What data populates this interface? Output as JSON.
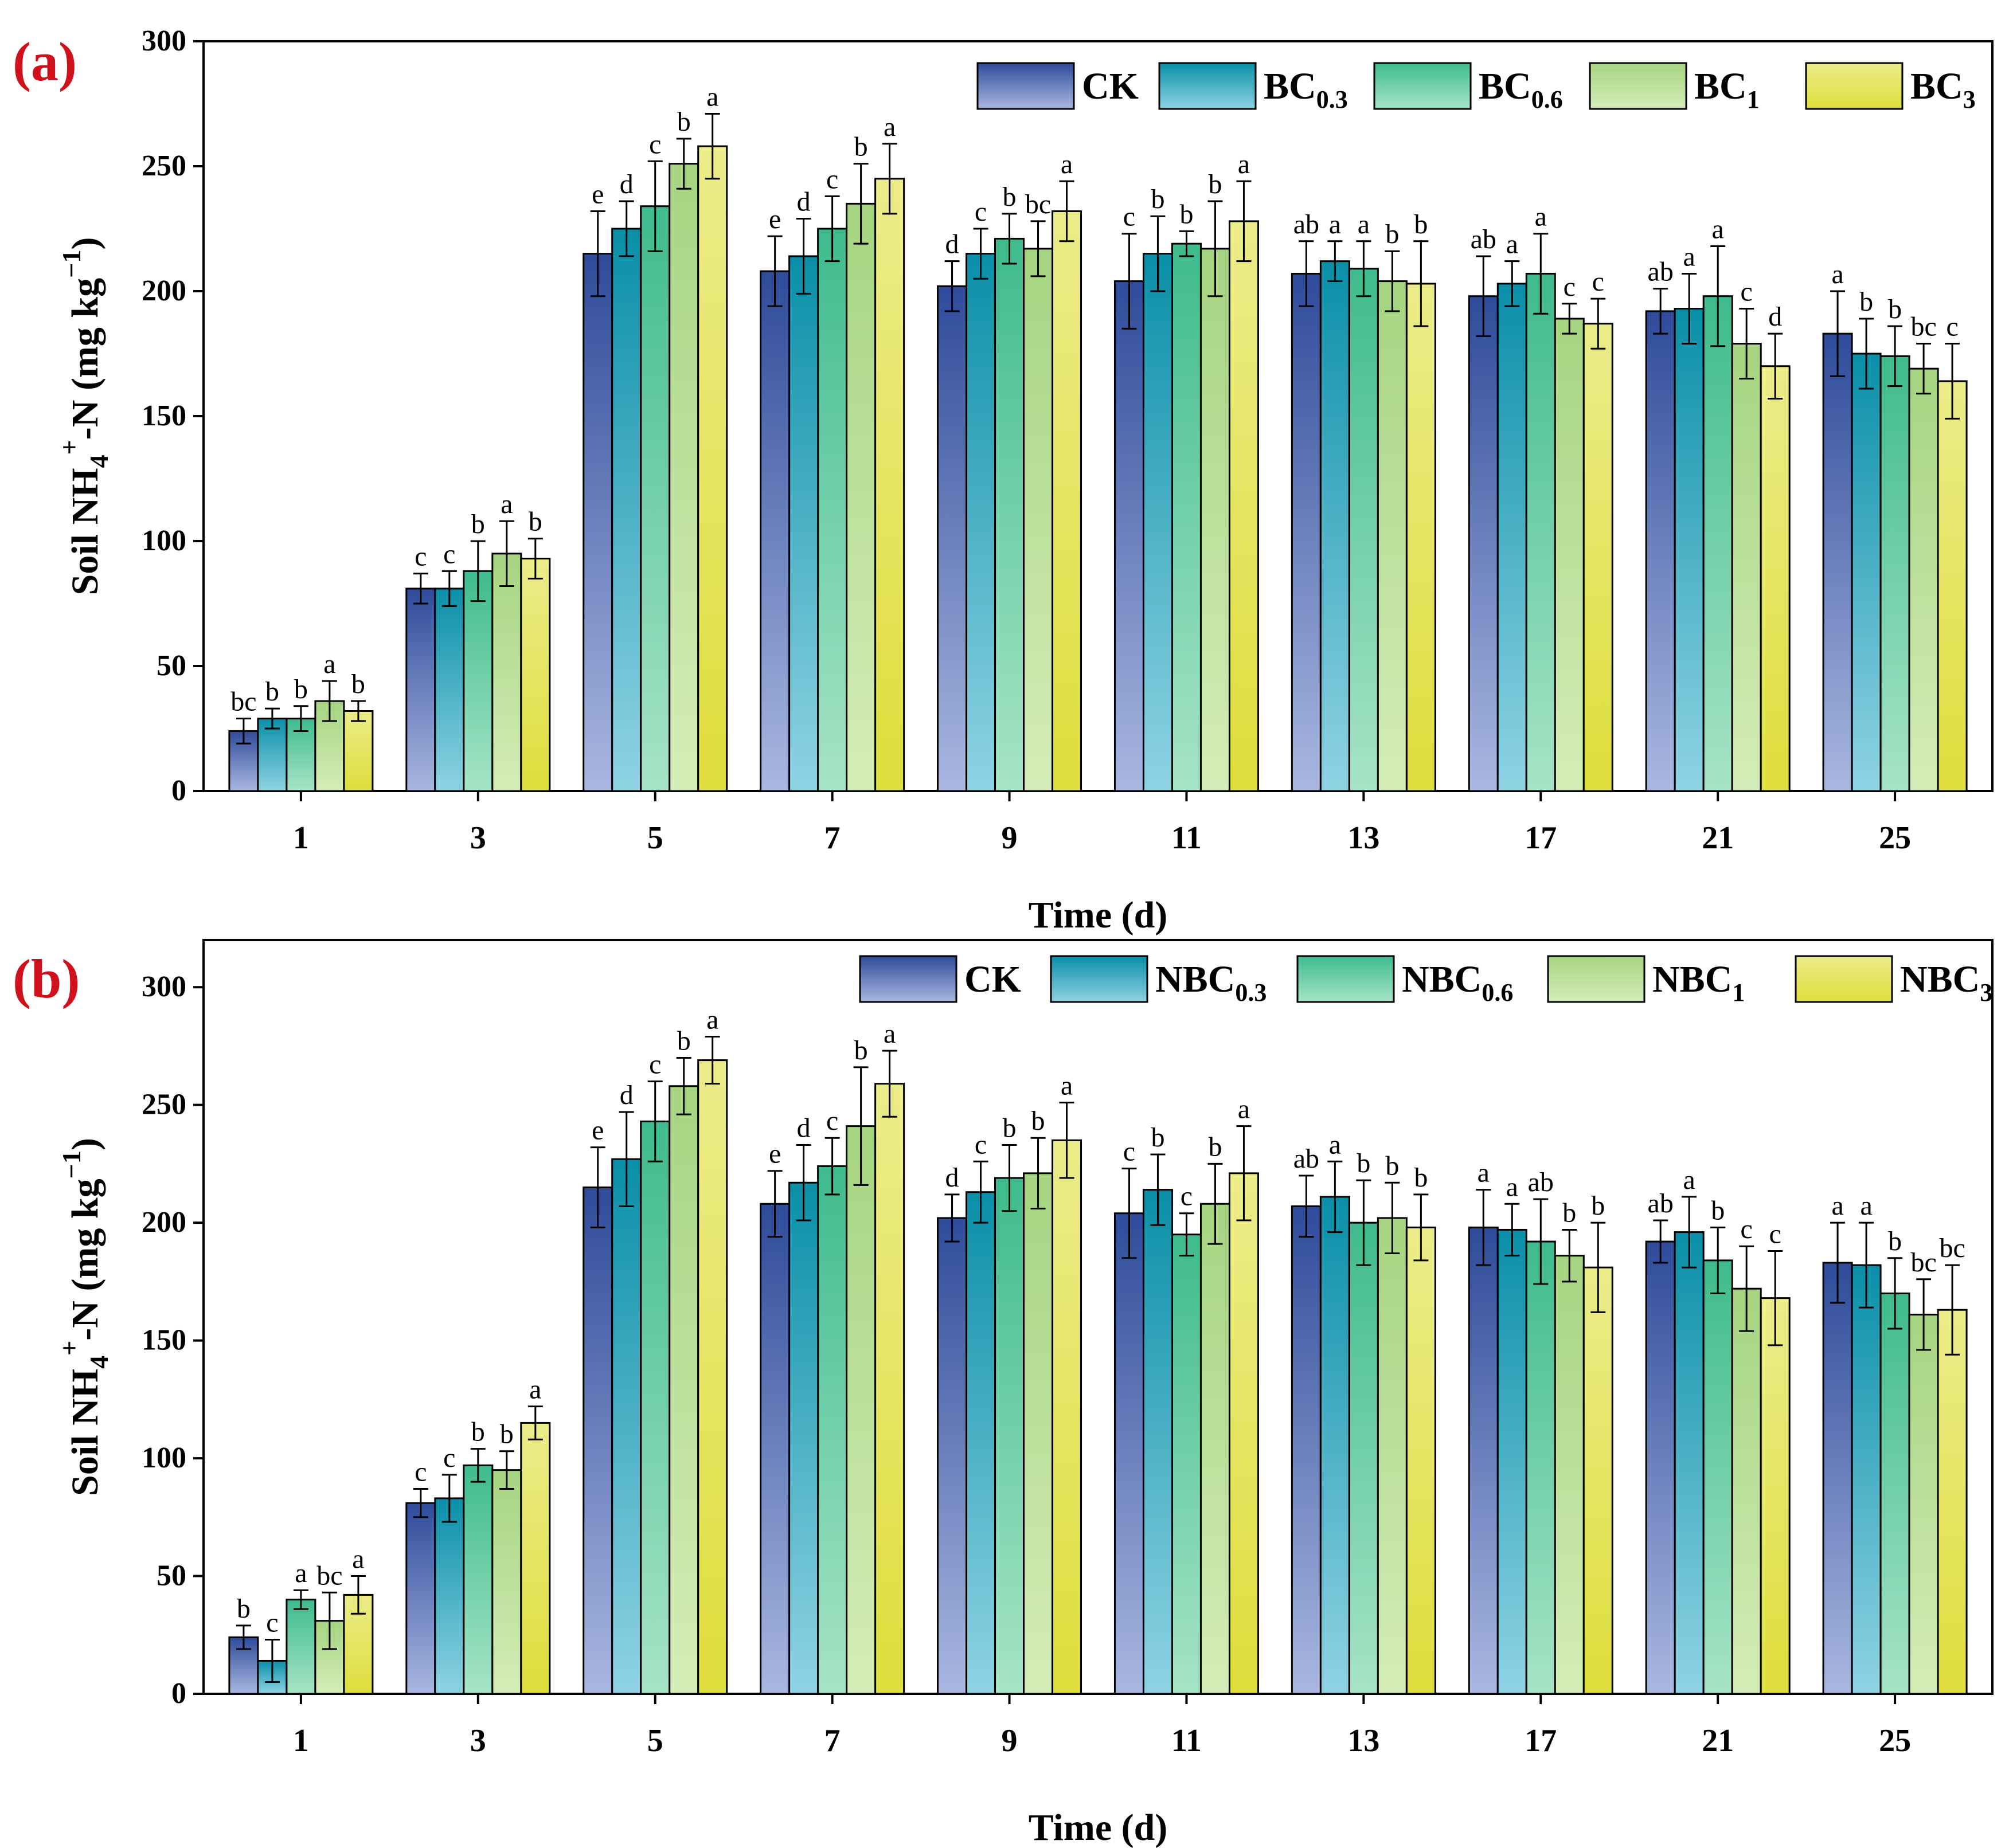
{
  "colors": {
    "panel_label": "#d0101b",
    "axis": "#000000",
    "series": [
      {
        "top": "#2f4b9a",
        "bottom": "#a9b7e0"
      },
      {
        "top": "#0a8fa8",
        "bottom": "#8fd3e3"
      },
      {
        "top": "#3fbb8e",
        "bottom": "#a6e4c6"
      },
      {
        "top": "#a6d481",
        "bottom": "#d4edb8"
      },
      {
        "top": "#ecec8a",
        "bottom": "#dede3c"
      }
    ]
  },
  "chart_data": [
    {
      "panel": "(a)",
      "type": "bar",
      "ylabel": {
        "main": "Soil NH",
        "sub": "4",
        "sup": "+",
        "rest": "-N (mg kg",
        "sup2": "−1",
        "end": ")"
      },
      "xlabel": "Time (d)",
      "ylim": [
        0,
        300
      ],
      "yticks": [
        "0",
        "50",
        "100",
        "150",
        "200",
        "250",
        "300"
      ],
      "categories": [
        "1",
        "3",
        "5",
        "7",
        "9",
        "11",
        "13",
        "17",
        "21",
        "25"
      ],
      "legend": [
        {
          "base": "CK",
          "sub": ""
        },
        {
          "base": "BC",
          "sub": "0.3"
        },
        {
          "base": "BC",
          "sub": "0.6"
        },
        {
          "base": "BC",
          "sub": "1"
        },
        {
          "base": "BC",
          "sub": "3"
        }
      ],
      "series": [
        {
          "name": "CK",
          "values": [
            24,
            81,
            215,
            208,
            202,
            204,
            207,
            198,
            192,
            183
          ],
          "errors": [
            5,
            6,
            17,
            14,
            10,
            19,
            13,
            16,
            9,
            17
          ],
          "letters": [
            "bc",
            "c",
            "e",
            "e",
            "d",
            "c",
            "ab",
            "ab",
            "ab",
            "a"
          ]
        },
        {
          "name": "BC0.3",
          "values": [
            29,
            81,
            225,
            214,
            215,
            215,
            212,
            203,
            193,
            175
          ],
          "errors": [
            4,
            7,
            11,
            15,
            10,
            15,
            8,
            9,
            14,
            14
          ],
          "letters": [
            "b",
            "c",
            "d",
            "d",
            "c",
            "b",
            "a",
            "a",
            "a",
            "b"
          ]
        },
        {
          "name": "BC0.6",
          "values": [
            29,
            88,
            234,
            225,
            221,
            219,
            209,
            207,
            198,
            174
          ],
          "errors": [
            5,
            12,
            18,
            13,
            10,
            5,
            11,
            16,
            20,
            12
          ],
          "letters": [
            "b",
            "b",
            "c",
            "c",
            "b",
            "b",
            "a",
            "a",
            "a",
            "b"
          ]
        },
        {
          "name": "BC1",
          "values": [
            36,
            95,
            251,
            235,
            217,
            217,
            204,
            189,
            179,
            169
          ],
          "errors": [
            8,
            13,
            10,
            16,
            11,
            19,
            12,
            6,
            14,
            10
          ],
          "letters": [
            "a",
            "a",
            "b",
            "b",
            "bc",
            "b",
            "b",
            "c",
            "c",
            "bc"
          ]
        },
        {
          "name": "BC3",
          "values": [
            32,
            93,
            258,
            245,
            232,
            228,
            203,
            187,
            170,
            164
          ],
          "errors": [
            4,
            8,
            13,
            14,
            12,
            16,
            17,
            10,
            13,
            15
          ],
          "letters": [
            "b",
            "b",
            "a",
            "a",
            "a",
            "a",
            "b",
            "c",
            "d",
            "c"
          ]
        }
      ]
    },
    {
      "panel": "(b)",
      "type": "bar",
      "ylabel": {
        "main": "Soil NH",
        "sub": "4",
        "sup": "+",
        "rest": "-N (mg kg",
        "sup2": "−1",
        "end": ")"
      },
      "xlabel": "Time (d)",
      "ylim": [
        0,
        320
      ],
      "yticks": [
        "0",
        "50",
        "100",
        "150",
        "200",
        "250",
        "300"
      ],
      "categories": [
        "1",
        "3",
        "5",
        "7",
        "9",
        "11",
        "13",
        "17",
        "21",
        "25"
      ],
      "legend": [
        {
          "base": "CK",
          "sub": ""
        },
        {
          "base": "NBC",
          "sub": "0.3"
        },
        {
          "base": "NBC",
          "sub": "0.6"
        },
        {
          "base": "NBC",
          "sub": "1"
        },
        {
          "base": "NBC",
          "sub": "3"
        }
      ],
      "series": [
        {
          "name": "CK",
          "values": [
            24,
            81,
            215,
            208,
            202,
            204,
            207,
            198,
            192,
            183
          ],
          "errors": [
            5,
            6,
            17,
            14,
            10,
            19,
            13,
            16,
            9,
            17
          ],
          "letters": [
            "b",
            "c",
            "e",
            "e",
            "d",
            "c",
            "ab",
            "a",
            "ab",
            "a"
          ]
        },
        {
          "name": "NBC0.3",
          "values": [
            14,
            83,
            227,
            217,
            213,
            214,
            211,
            197,
            196,
            182
          ],
          "errors": [
            9,
            10,
            20,
            16,
            13,
            15,
            15,
            11,
            15,
            18
          ],
          "letters": [
            "c",
            "c",
            "d",
            "d",
            "c",
            "b",
            "a",
            "a",
            "a",
            "a"
          ]
        },
        {
          "name": "NBC0.6",
          "values": [
            40,
            97,
            243,
            224,
            219,
            195,
            200,
            192,
            184,
            170
          ],
          "errors": [
            4,
            7,
            17,
            12,
            14,
            9,
            18,
            18,
            14,
            15
          ],
          "letters": [
            "a",
            "b",
            "c",
            "c",
            "b",
            "c",
            "b",
            "ab",
            "b",
            "b"
          ]
        },
        {
          "name": "NBC1",
          "values": [
            31,
            95,
            258,
            241,
            221,
            208,
            202,
            186,
            172,
            161
          ],
          "errors": [
            12,
            8,
            12,
            25,
            15,
            17,
            15,
            11,
            18,
            15
          ],
          "letters": [
            "bc",
            "b",
            "b",
            "b",
            "b",
            "b",
            "b",
            "b",
            "c",
            "bc"
          ]
        },
        {
          "name": "NBC3",
          "values": [
            42,
            115,
            269,
            259,
            235,
            221,
            198,
            181,
            168,
            163
          ],
          "errors": [
            8,
            7,
            10,
            14,
            16,
            20,
            14,
            19,
            20,
            19
          ],
          "letters": [
            "a",
            "a",
            "a",
            "a",
            "a",
            "a",
            "b",
            "b",
            "c",
            "bc"
          ]
        }
      ]
    }
  ]
}
